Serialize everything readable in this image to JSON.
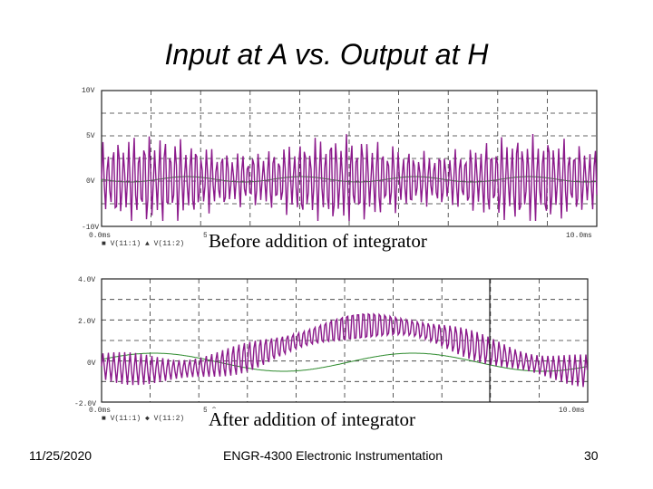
{
  "slide": {
    "title": "Input at A vs. Output at H",
    "date": "11/25/2020",
    "course": "ENGR-4300  Electronic Instrumentation",
    "page_number": "30"
  },
  "plot1": {
    "caption": "Before addition of integrator",
    "y_ticks": [
      "10V",
      "5V",
      "0V",
      "-10V"
    ],
    "x_ticks": [
      "0.0ms",
      "5.0",
      "10.0ms"
    ],
    "legend": "■ V(11:1)   ▲ V(11:2)",
    "colors": {
      "input": "#2e8b2e",
      "output": "#8b1a8b"
    }
  },
  "plot2": {
    "caption": "After addition of integrator",
    "y_ticks": [
      "4.0V",
      "2.0V",
      "0V",
      "-2.0V"
    ],
    "x_ticks": [
      "0.0ms",
      "5.0",
      "10.0ms"
    ],
    "legend": "■ V(11:1)   ◆ V(11:2)",
    "colors": {
      "input": "#2e8b2e",
      "output": "#8b1a8b"
    }
  }
}
